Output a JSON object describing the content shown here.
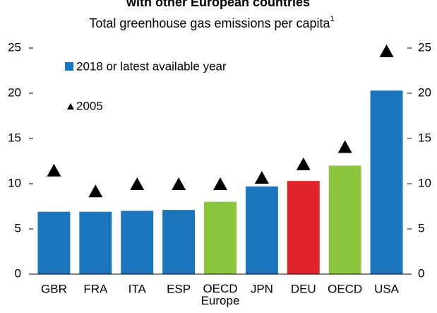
{
  "chart_data": {
    "type": "bar",
    "title": "with other European countries",
    "subtitle": "Total greenhouse gas emissions per capita",
    "subtitle_note": "1",
    "categories": [
      "GBR",
      "FRA",
      "ITA",
      "ESP",
      "OECD Europe",
      "JPN",
      "DEU",
      "OECD",
      "USA"
    ],
    "series": [
      {
        "name": "2018 or latest available year",
        "color": "#1a75bc",
        "colors": [
          "#1a75bc",
          "#1a75bc",
          "#1a75bc",
          "#1a75bc",
          "#8cc63f",
          "#1a75bc",
          "#e1232a",
          "#8cc63f",
          "#1a75bc"
        ],
        "values": [
          6.9,
          6.9,
          7.0,
          7.1,
          8.0,
          9.7,
          10.3,
          12.0,
          20.3
        ]
      },
      {
        "name": "2005",
        "type": "marker",
        "color": "#000000",
        "values": [
          11.5,
          9.2,
          10.0,
          10.0,
          10.0,
          10.7,
          12.2,
          14.1,
          24.7
        ]
      }
    ],
    "ylim": [
      0,
      25
    ],
    "yticks": [
      0,
      5,
      10,
      15,
      20,
      25
    ],
    "y2lim": [
      0,
      25
    ],
    "y2ticks": [
      0,
      5,
      10,
      15,
      20,
      25
    ],
    "grid": false
  }
}
